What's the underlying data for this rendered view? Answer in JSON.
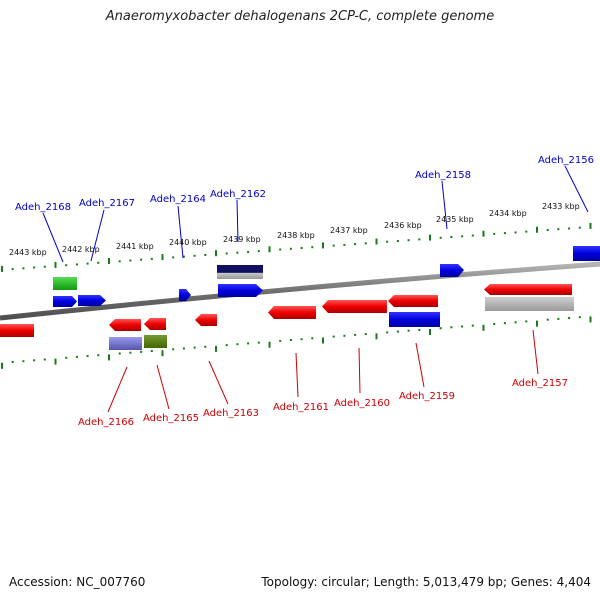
{
  "title": "Anaeromyxobacter dehalogenans 2CP-C, complete genome",
  "footer": {
    "accession": "Accession: NC_007760",
    "summary": "Topology: circular; Length: 5,013,479 bp; Genes: 4,404"
  },
  "scale_labels": [
    "2443 kbp",
    "2442 kbp",
    "2441 kbp",
    "2440 kbp",
    "2439 kbp",
    "2438 kbp",
    "2437 kbp",
    "2436 kbp",
    "2435 kbp",
    "2434 kbp",
    "2433 kbp"
  ],
  "colors": {
    "forward_label": "#0000cc",
    "reverse_label": "#cc0000",
    "scale_tick": "#1a7a1a",
    "backbone": "#808080",
    "forward_feature": "#0000dd",
    "reverse_feature": "#ee0000",
    "cds_green": "#22bb22",
    "rna_gray": "#b0b0b0",
    "dark_blue": "#101060",
    "lavender": "#7777cc",
    "olive": "#557711"
  },
  "gene_labels_forward": [
    "Adeh_2168",
    "Adeh_2167",
    "Adeh_2164",
    "Adeh_2162",
    "Adeh_2158",
    "Adeh_2156"
  ],
  "gene_labels_reverse": [
    "Adeh_2166",
    "Adeh_2165",
    "Adeh_2163",
    "Adeh_2161",
    "Adeh_2160",
    "Adeh_2159",
    "Adeh_2157"
  ]
}
